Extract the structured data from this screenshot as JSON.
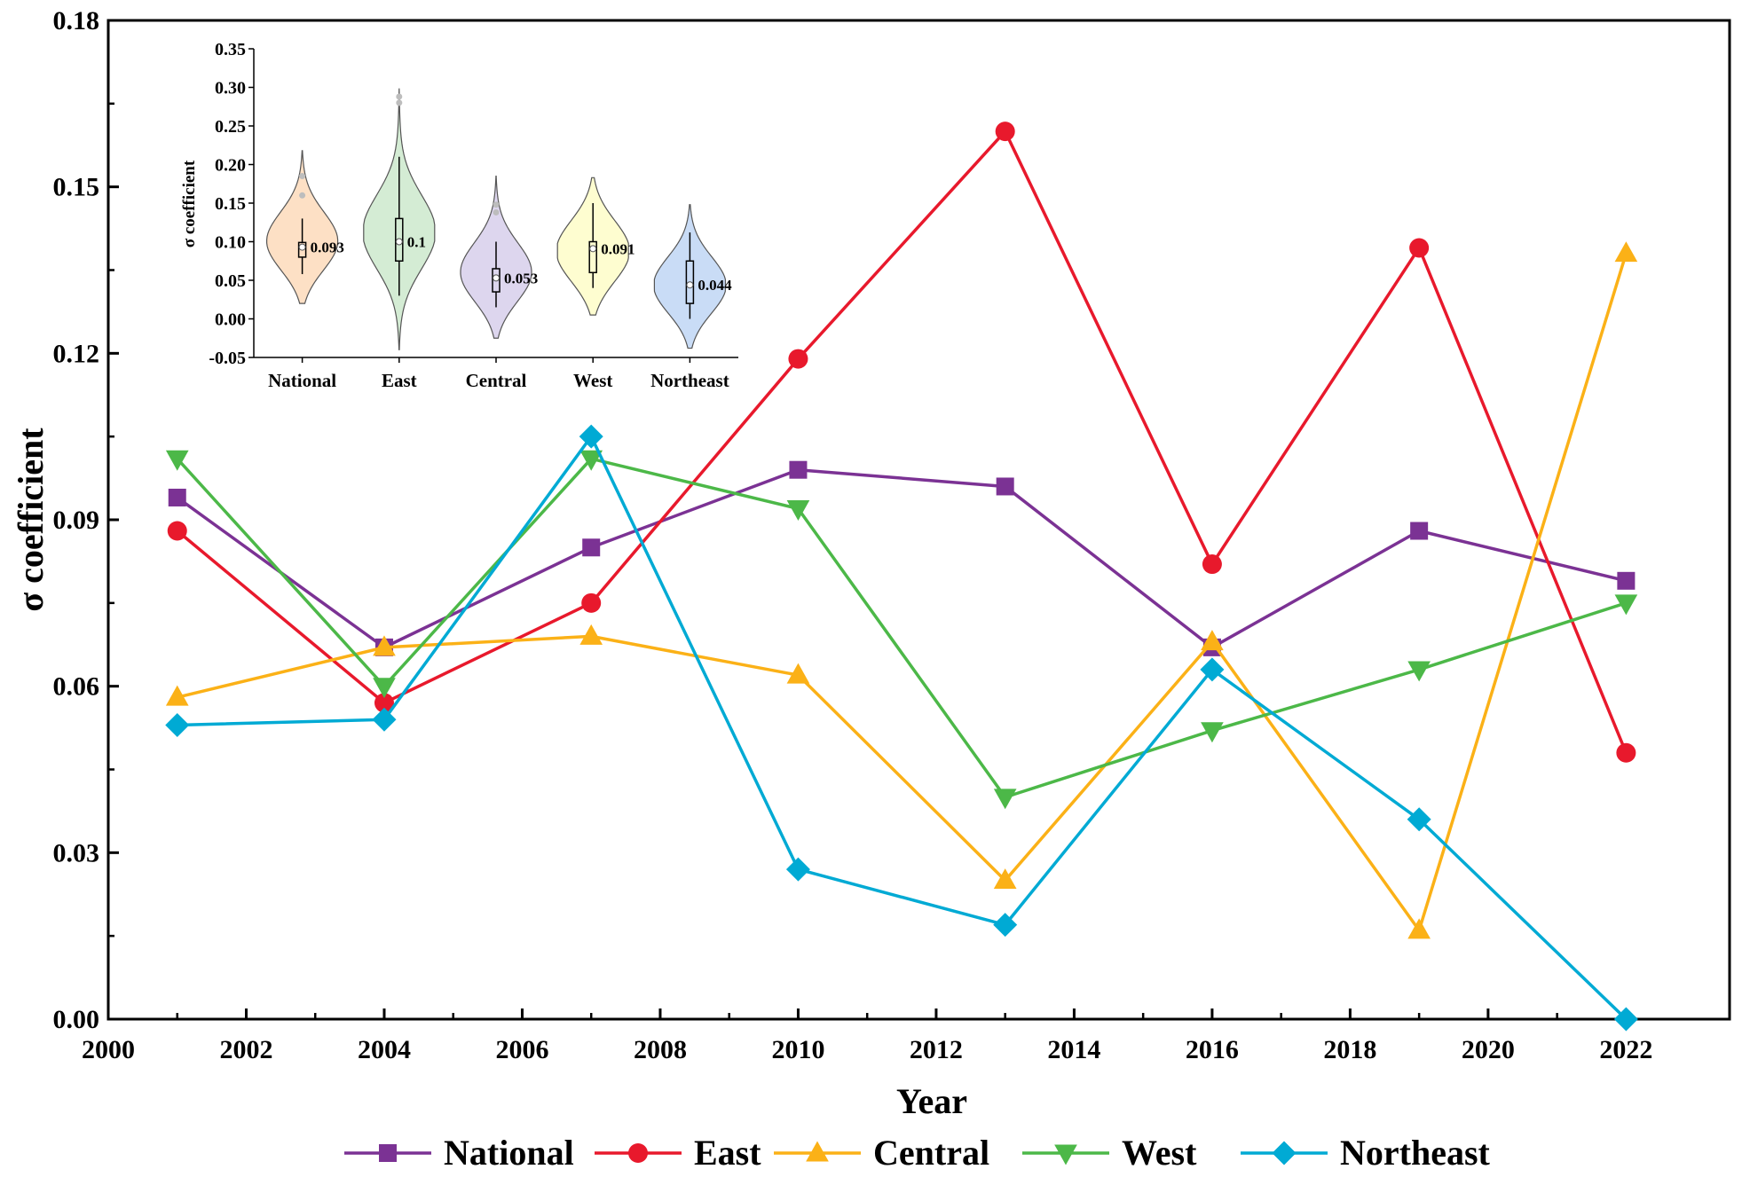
{
  "chart_data": [
    {
      "type": "line",
      "ylabel": "σ coefficient",
      "xlabel": "Year",
      "xlim": [
        2000,
        2023.5
      ],
      "ylim": [
        0,
        0.18
      ],
      "x_ticks": [
        "2000",
        "2002",
        "2004",
        "2006",
        "2008",
        "2010",
        "2012",
        "2014",
        "2016",
        "2018",
        "2020",
        "2022"
      ],
      "y_ticks": [
        "0.00",
        "0.03",
        "0.06",
        "0.09",
        "0.12",
        "0.15",
        "0.18"
      ],
      "x": [
        2001,
        2004,
        2007,
        2010,
        2013,
        2016,
        2019,
        2022
      ],
      "legend_position": "bottom",
      "series": [
        {
          "name": "National",
          "color": "#7b3294",
          "marker": "square",
          "values": [
            0.094,
            0.067,
            0.085,
            0.099,
            0.096,
            0.067,
            0.088,
            0.079
          ]
        },
        {
          "name": "East",
          "color": "#e8192c",
          "marker": "circle",
          "values": [
            0.088,
            0.057,
            0.075,
            0.119,
            0.16,
            0.082,
            0.139,
            0.048
          ]
        },
        {
          "name": "Central",
          "color": "#fbb117",
          "marker": "triangle-up",
          "values": [
            0.058,
            0.067,
            0.069,
            0.062,
            0.025,
            0.068,
            0.016,
            0.138
          ]
        },
        {
          "name": "West",
          "color": "#4cb848",
          "marker": "triangle-down",
          "values": [
            0.101,
            0.06,
            0.101,
            0.092,
            0.04,
            0.052,
            0.063,
            0.075
          ]
        },
        {
          "name": "Northeast",
          "color": "#00aad4",
          "marker": "diamond",
          "values": [
            0.053,
            0.054,
            0.105,
            0.027,
            0.017,
            0.063,
            0.036,
            0.0
          ]
        }
      ]
    },
    {
      "type": "violin",
      "ylabel": "σ coefficient",
      "ylim": [
        -0.05,
        0.35
      ],
      "y_ticks": [
        "-0.05",
        "0.00",
        "0.05",
        "0.10",
        "0.15",
        "0.20",
        "0.25",
        "0.30",
        "0.35"
      ],
      "categories": [
        "National",
        "East",
        "Central",
        "West",
        "Northeast"
      ],
      "groups": [
        {
          "name": "National",
          "fill": "#fde0c5",
          "median": 0.093,
          "median_label": "0.093",
          "q1": 0.08,
          "q3": 0.099,
          "whisker_low": 0.058,
          "whisker_high": 0.13,
          "min": 0.02,
          "max": 0.218,
          "mode": 0.095,
          "width": 0.06,
          "outliers": [
            0.16,
            0.185
          ]
        },
        {
          "name": "East",
          "fill": "#d4ecd4",
          "median": 0.1,
          "median_label": "0.1",
          "q1": 0.075,
          "q3": 0.13,
          "whisker_low": 0.03,
          "whisker_high": 0.21,
          "min": -0.04,
          "max": 0.298,
          "mode": 0.11,
          "width": 0.072,
          "outliers": [
            0.28,
            0.288
          ]
        },
        {
          "name": "Central",
          "fill": "#ddd6ee",
          "median": 0.053,
          "median_label": "0.053",
          "q1": 0.035,
          "q3": 0.065,
          "whisker_low": 0.015,
          "whisker_high": 0.1,
          "min": -0.025,
          "max": 0.185,
          "mode": 0.055,
          "width": 0.06,
          "outliers": [
            0.138,
            0.148
          ]
        },
        {
          "name": "West",
          "fill": "#fefdd0",
          "median": 0.091,
          "median_label": "0.091",
          "q1": 0.06,
          "q3": 0.1,
          "whisker_low": 0.04,
          "whisker_high": 0.15,
          "min": 0.005,
          "max": 0.183,
          "mode": 0.085,
          "width": 0.065,
          "outliers": []
        },
        {
          "name": "Northeast",
          "fill": "#c9dcf6",
          "median": 0.044,
          "median_label": "0.044",
          "q1": 0.02,
          "q3": 0.075,
          "whisker_low": 0.0,
          "whisker_high": 0.112,
          "min": -0.038,
          "max": 0.148,
          "mode": 0.04,
          "width": 0.058,
          "outliers": []
        }
      ]
    }
  ]
}
